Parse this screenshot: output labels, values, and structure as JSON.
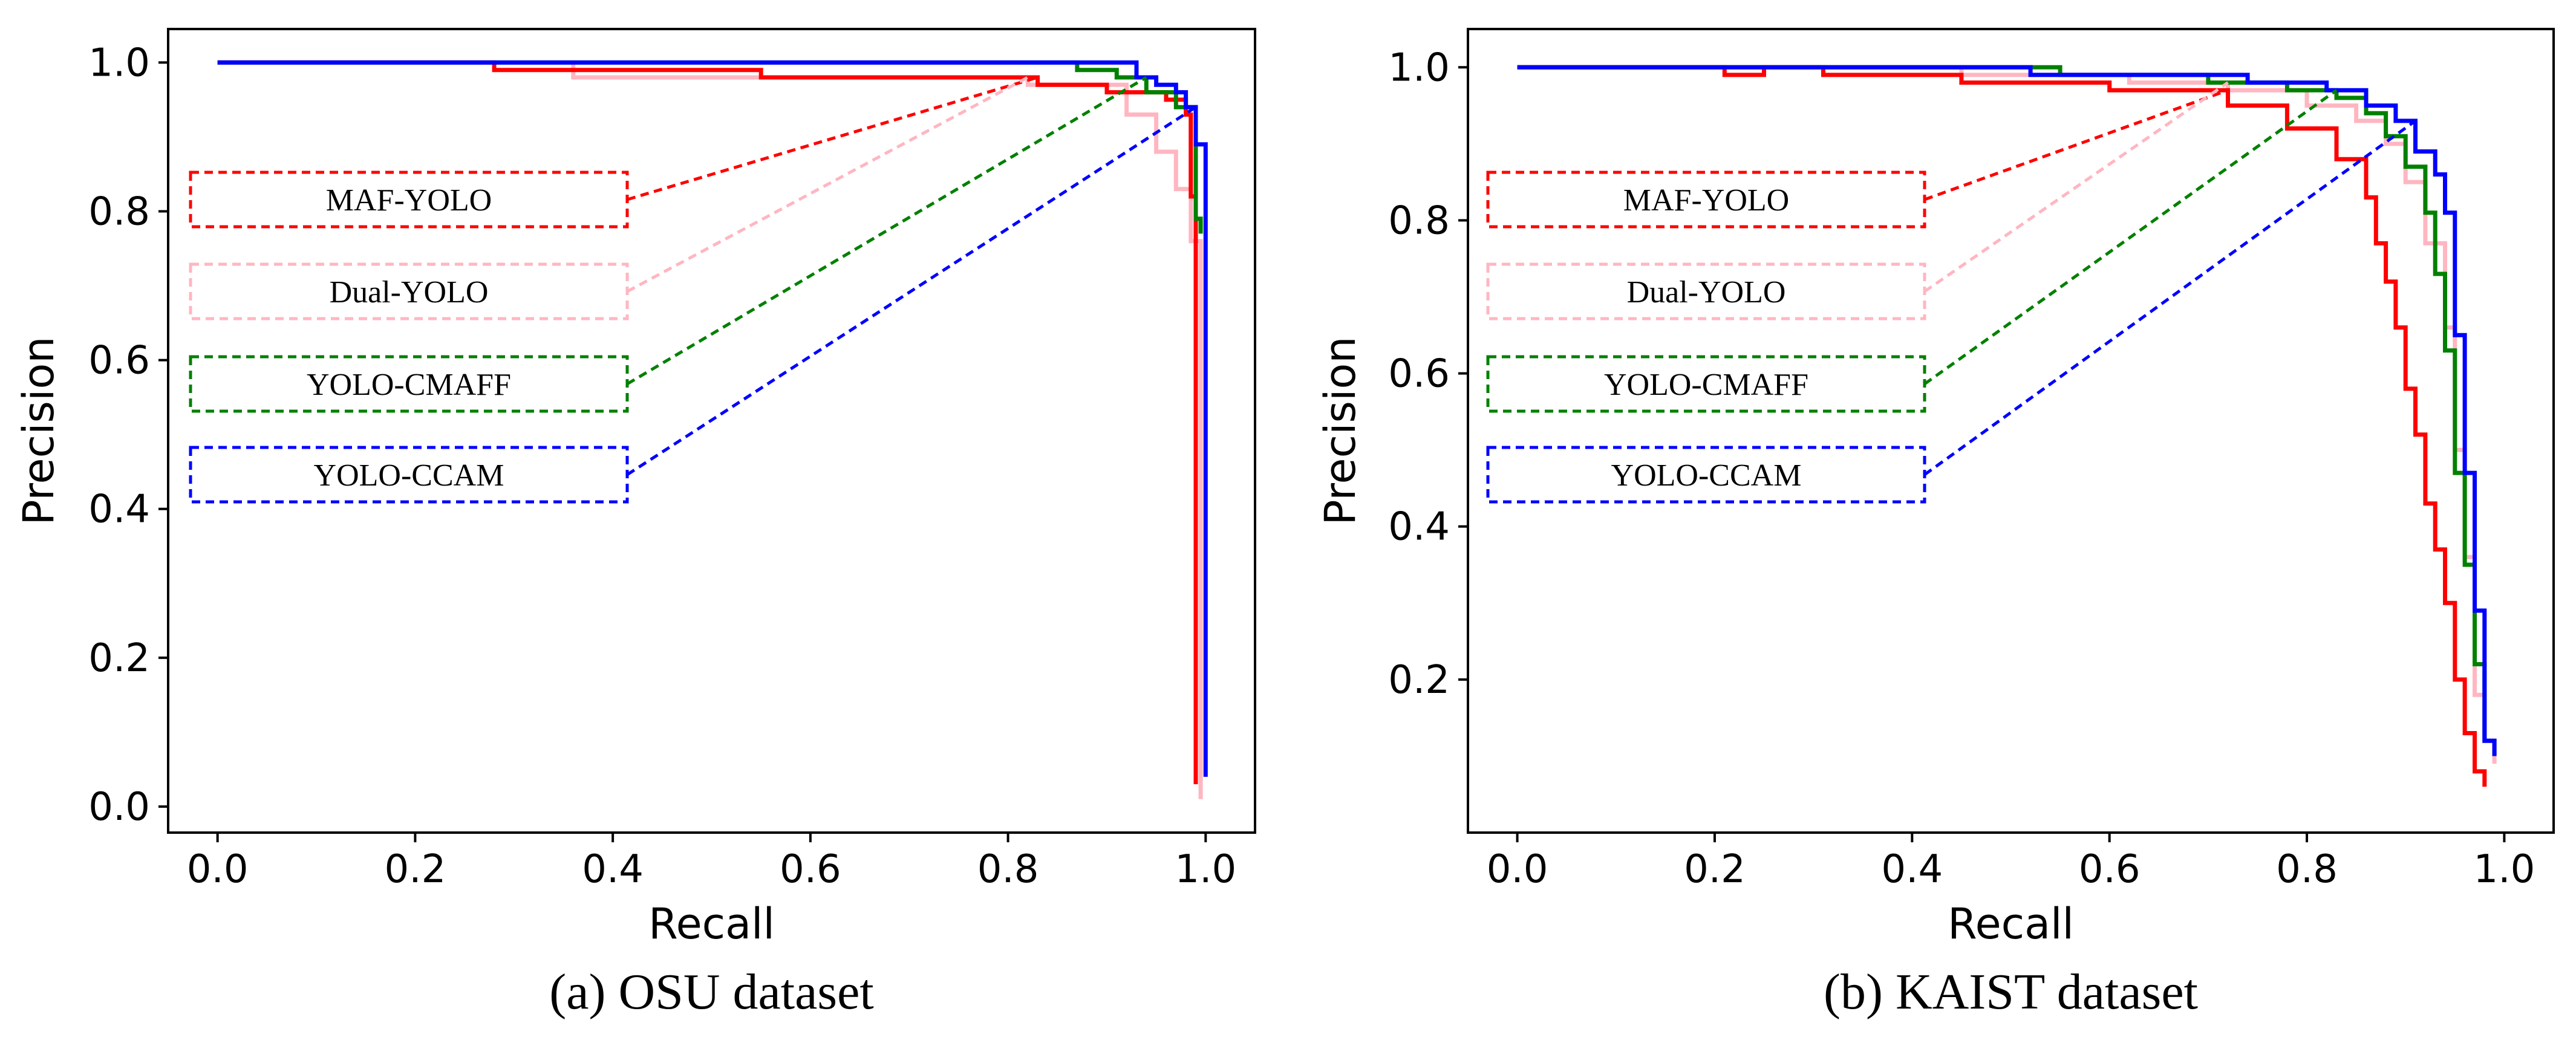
{
  "chart_data": [
    {
      "type": "line",
      "caption": "(a) OSU dataset",
      "xlabel": "Recall",
      "ylabel": "Precision",
      "xlim": [
        -0.05,
        1.05
      ],
      "ylim": [
        -0.035,
        1.045
      ],
      "xticks": [
        "0.0",
        "0.2",
        "0.4",
        "0.6",
        "0.8",
        "1.0"
      ],
      "yticks": [
        "0.0",
        "0.2",
        "0.4",
        "0.6",
        "0.8",
        "1.0"
      ],
      "legend_placement": "left, boxed labels with dashed leader lines to curves",
      "series": [
        {
          "name": "MAF-YOLO",
          "color": "#ff0000",
          "x": [
            0.0,
            0.28,
            0.28,
            0.43,
            0.43,
            0.55,
            0.55,
            0.83,
            0.83,
            0.9,
            0.9,
            0.96,
            0.96,
            0.98,
            0.98,
            0.985,
            0.985,
            0.99,
            0.99
          ],
          "y": [
            1.0,
            1.0,
            0.99,
            0.99,
            0.99,
            0.99,
            0.98,
            0.98,
            0.97,
            0.97,
            0.96,
            0.96,
            0.95,
            0.95,
            0.93,
            0.93,
            0.82,
            0.82,
            0.03
          ]
        },
        {
          "name": "Dual-YOLO",
          "color": "#ffb6c1",
          "x": [
            0.0,
            0.36,
            0.36,
            0.82,
            0.82,
            0.92,
            0.92,
            0.95,
            0.95,
            0.97,
            0.97,
            0.985,
            0.985,
            0.995,
            0.995
          ],
          "y": [
            1.0,
            1.0,
            0.98,
            0.98,
            0.97,
            0.97,
            0.93,
            0.93,
            0.88,
            0.88,
            0.83,
            0.83,
            0.76,
            0.76,
            0.01
          ]
        },
        {
          "name": "YOLO-CMAFF",
          "color": "#008000",
          "x": [
            0.0,
            0.87,
            0.87,
            0.91,
            0.91,
            0.94,
            0.94,
            0.97,
            0.97,
            0.99,
            0.99,
            0.995,
            0.995
          ],
          "y": [
            1.0,
            1.0,
            0.99,
            0.99,
            0.98,
            0.98,
            0.96,
            0.96,
            0.94,
            0.94,
            0.79,
            0.79,
            0.77
          ]
        },
        {
          "name": "YOLO-CCAM",
          "color": "#0000ff",
          "x": [
            0.0,
            0.93,
            0.93,
            0.95,
            0.95,
            0.97,
            0.97,
            0.98,
            0.98,
            0.99,
            0.99,
            1.0,
            1.0
          ],
          "y": [
            1.0,
            1.0,
            0.98,
            0.98,
            0.97,
            0.97,
            0.96,
            0.96,
            0.94,
            0.94,
            0.89,
            0.89,
            0.04
          ]
        }
      ]
    },
    {
      "type": "line",
      "caption": "(b) KAIST dataset",
      "xlabel": "Recall",
      "ylabel": "Precision",
      "xlim": [
        -0.05,
        1.05
      ],
      "ylim": [
        0.0,
        1.05
      ],
      "xticks": [
        "0.0",
        "0.2",
        "0.4",
        "0.6",
        "0.8",
        "1.0"
      ],
      "yticks": [
        "0.2",
        "0.4",
        "0.6",
        "0.8",
        "1.0"
      ],
      "legend_placement": "left, boxed labels with dashed leader lines to curves",
      "series": [
        {
          "name": "MAF-YOLO",
          "color": "#ff0000",
          "x": [
            0.0,
            0.21,
            0.21,
            0.25,
            0.25,
            0.31,
            0.31,
            0.34,
            0.34,
            0.37,
            0.37,
            0.45,
            0.45,
            0.6,
            0.6,
            0.72,
            0.72,
            0.78,
            0.78,
            0.83,
            0.83,
            0.86,
            0.86,
            0.87,
            0.87,
            0.88,
            0.88,
            0.89,
            0.89,
            0.9,
            0.9,
            0.91,
            0.91,
            0.92,
            0.92,
            0.93,
            0.93,
            0.94,
            0.94,
            0.95,
            0.95,
            0.96,
            0.96,
            0.97,
            0.97,
            0.98,
            0.98
          ],
          "y": [
            1.0,
            1.0,
            0.99,
            0.99,
            1.0,
            1.0,
            0.99,
            0.99,
            0.99,
            0.99,
            0.99,
            0.99,
            0.98,
            0.98,
            0.97,
            0.97,
            0.95,
            0.95,
            0.92,
            0.92,
            0.88,
            0.88,
            0.83,
            0.83,
            0.77,
            0.77,
            0.72,
            0.72,
            0.66,
            0.66,
            0.58,
            0.58,
            0.52,
            0.52,
            0.43,
            0.43,
            0.37,
            0.37,
            0.3,
            0.3,
            0.2,
            0.2,
            0.13,
            0.13,
            0.08,
            0.08,
            0.06
          ]
        },
        {
          "name": "Dual-YOLO",
          "color": "#ffb6c1",
          "x": [
            0.0,
            0.45,
            0.45,
            0.62,
            0.62,
            0.72,
            0.72,
            0.8,
            0.8,
            0.85,
            0.85,
            0.88,
            0.88,
            0.9,
            0.9,
            0.92,
            0.92,
            0.94,
            0.94,
            0.95,
            0.95,
            0.96,
            0.96,
            0.97,
            0.97,
            0.98,
            0.98,
            0.99,
            0.99
          ],
          "y": [
            1.0,
            1.0,
            0.99,
            0.99,
            0.98,
            0.98,
            0.97,
            0.97,
            0.95,
            0.95,
            0.93,
            0.93,
            0.9,
            0.9,
            0.85,
            0.85,
            0.77,
            0.77,
            0.66,
            0.66,
            0.5,
            0.5,
            0.36,
            0.36,
            0.18,
            0.18,
            0.12,
            0.12,
            0.09
          ]
        },
        {
          "name": "YOLO-CMAFF",
          "color": "#008000",
          "x": [
            0.0,
            0.55,
            0.55,
            0.7,
            0.7,
            0.78,
            0.78,
            0.83,
            0.83,
            0.86,
            0.86,
            0.88,
            0.88,
            0.9,
            0.9,
            0.92,
            0.92,
            0.93,
            0.93,
            0.94,
            0.94,
            0.95,
            0.95,
            0.96,
            0.96,
            0.97,
            0.97,
            0.98,
            0.98,
            0.99,
            0.99
          ],
          "y": [
            1.0,
            1.0,
            0.99,
            0.99,
            0.98,
            0.98,
            0.97,
            0.97,
            0.96,
            0.96,
            0.94,
            0.94,
            0.91,
            0.91,
            0.87,
            0.87,
            0.81,
            0.81,
            0.73,
            0.73,
            0.63,
            0.63,
            0.47,
            0.47,
            0.35,
            0.35,
            0.22,
            0.22,
            0.12,
            0.12,
            0.1
          ]
        },
        {
          "name": "YOLO-CCAM",
          "color": "#0000ff",
          "x": [
            0.0,
            0.52,
            0.52,
            0.74,
            0.74,
            0.82,
            0.82,
            0.86,
            0.86,
            0.89,
            0.89,
            0.91,
            0.91,
            0.93,
            0.93,
            0.94,
            0.94,
            0.95,
            0.95,
            0.96,
            0.96,
            0.97,
            0.97,
            0.98,
            0.98,
            0.99,
            0.99
          ],
          "y": [
            1.0,
            1.0,
            0.99,
            0.99,
            0.98,
            0.98,
            0.97,
            0.97,
            0.95,
            0.95,
            0.93,
            0.93,
            0.89,
            0.89,
            0.86,
            0.86,
            0.81,
            0.81,
            0.65,
            0.65,
            0.47,
            0.47,
            0.29,
            0.29,
            0.12,
            0.12,
            0.1
          ]
        }
      ]
    }
  ]
}
